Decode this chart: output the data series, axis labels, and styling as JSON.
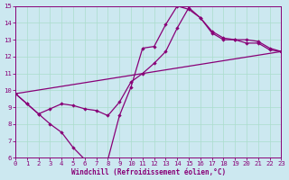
{
  "bg_color": "#cce8f0",
  "line_color": "#880077",
  "grid_color": "#aaddcc",
  "xlabel": "Windchill (Refroidissement éolien,°C)",
  "xmin": 0,
  "xmax": 23,
  "ymin": 6,
  "ymax": 15,
  "curve1_x": [
    0,
    1,
    2,
    3,
    4,
    5,
    6,
    7,
    8,
    9,
    10,
    11,
    12,
    13,
    14,
    15,
    16,
    17,
    18,
    19,
    20,
    21,
    22,
    23
  ],
  "curve1_y": [
    9.8,
    9.2,
    8.6,
    8.0,
    7.5,
    6.6,
    5.9,
    5.8,
    5.9,
    8.5,
    10.2,
    12.5,
    12.6,
    13.9,
    15.0,
    14.8,
    14.3,
    13.4,
    13.0,
    13.0,
    12.8,
    12.8,
    12.4,
    12.3
  ],
  "curve2_x": [
    0,
    1,
    2,
    3,
    4,
    5,
    6,
    7,
    8,
    9,
    10,
    11,
    12,
    13,
    14,
    15,
    16,
    17,
    18,
    19,
    20,
    21,
    22,
    23
  ],
  "curve2_y": [
    9.8,
    9.2,
    8.6,
    8.9,
    9.2,
    9.1,
    8.9,
    8.8,
    8.5,
    9.3,
    10.5,
    11.0,
    11.6,
    12.3,
    13.7,
    14.9,
    14.3,
    13.5,
    13.1,
    13.0,
    13.0,
    12.9,
    12.5,
    12.3
  ],
  "curve3_x": [
    0,
    23
  ],
  "curve3_y": [
    9.8,
    12.3
  ],
  "linewidth": 0.9,
  "markersize": 2.2,
  "tick_fontsize": 5.2,
  "xlabel_fontsize": 5.5
}
